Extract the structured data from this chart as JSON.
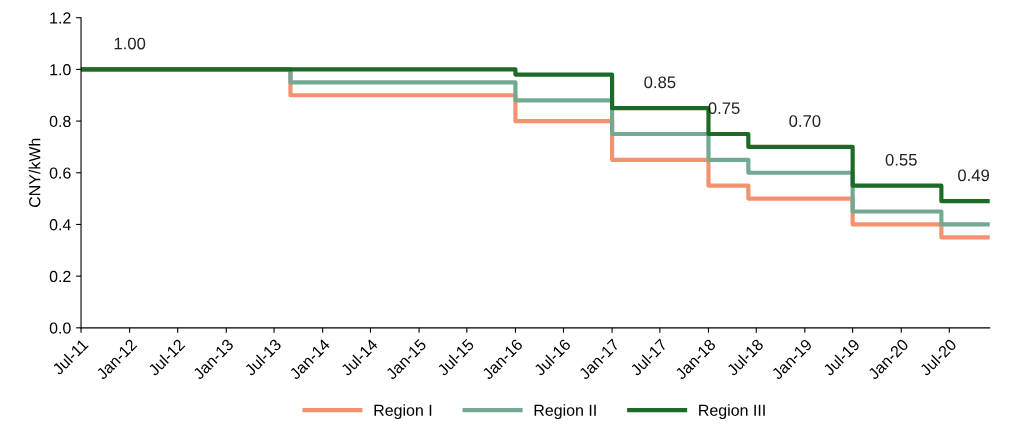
{
  "chart_data": {
    "type": "step",
    "ylabel": "CNY/kWh",
    "ylim": [
      0,
      1.2
    ],
    "yticks": [
      {
        "value": 0,
        "label": "0.0"
      },
      {
        "value": 0.2,
        "label": "0.2"
      },
      {
        "value": 0.4,
        "label": "0.4"
      },
      {
        "value": 0.6,
        "label": "0.6"
      },
      {
        "value": 0.8,
        "label": "0.8"
      },
      {
        "value": 1.0,
        "label": "1.0"
      },
      {
        "value": 1.2,
        "label": "1.2"
      }
    ],
    "xlim": [
      "2011-07",
      "2020-12"
    ],
    "xticks": [
      {
        "value": "2011-07",
        "label": "Jul-11"
      },
      {
        "value": "2012-01",
        "label": "Jan-12"
      },
      {
        "value": "2012-07",
        "label": "Jul-12"
      },
      {
        "value": "2013-01",
        "label": "Jan-13"
      },
      {
        "value": "2013-07",
        "label": "Jul-13"
      },
      {
        "value": "2014-01",
        "label": "Jan-14"
      },
      {
        "value": "2014-07",
        "label": "Jul-14"
      },
      {
        "value": "2015-01",
        "label": "Jan-15"
      },
      {
        "value": "2015-07",
        "label": "Jul-15"
      },
      {
        "value": "2016-01",
        "label": "Jan-16"
      },
      {
        "value": "2016-07",
        "label": "Jul-16"
      },
      {
        "value": "2017-01",
        "label": "Jan-17"
      },
      {
        "value": "2017-07",
        "label": "Jul-17"
      },
      {
        "value": "2018-01",
        "label": "Jan-18"
      },
      {
        "value": "2018-07",
        "label": "Jul-18"
      },
      {
        "value": "2019-01",
        "label": "Jan-19"
      },
      {
        "value": "2019-07",
        "label": "Jul-19"
      },
      {
        "value": "2020-01",
        "label": "Jan-20"
      },
      {
        "value": "2020-07",
        "label": "Jul-20"
      }
    ],
    "x": [
      "2011-07",
      "2013-09",
      "2016-01",
      "2017-01",
      "2018-01",
      "2018-06",
      "2019-07",
      "2020-06",
      "2020-12"
    ],
    "series": [
      {
        "name": "Region I",
        "color": "#f4926f",
        "values": [
          1.0,
          0.9,
          0.8,
          0.65,
          0.55,
          0.5,
          0.4,
          0.35,
          0.35
        ]
      },
      {
        "name": "Region II",
        "color": "#73a993",
        "values": [
          1.0,
          0.95,
          0.88,
          0.75,
          0.65,
          0.6,
          0.45,
          0.4,
          0.4
        ]
      },
      {
        "name": "Region III",
        "color": "#1b6b24",
        "values": [
          1.0,
          1.0,
          0.98,
          0.85,
          0.75,
          0.7,
          0.55,
          0.49,
          0.49
        ]
      }
    ],
    "annotations": [
      {
        "text": "1.00",
        "x": "2012-01",
        "y": 1.0
      },
      {
        "text": "0.85",
        "x": "2017-07",
        "y": 0.85
      },
      {
        "text": "0.75",
        "x": "2018-03",
        "y": 0.75
      },
      {
        "text": "0.70",
        "x": "2019-01",
        "y": 0.7
      },
      {
        "text": "0.55",
        "x": "2020-01",
        "y": 0.55
      },
      {
        "text": "0.49",
        "x": "2020-10",
        "y": 0.49
      }
    ],
    "legend": "bottom",
    "grid": false,
    "line_style": "solid"
  }
}
